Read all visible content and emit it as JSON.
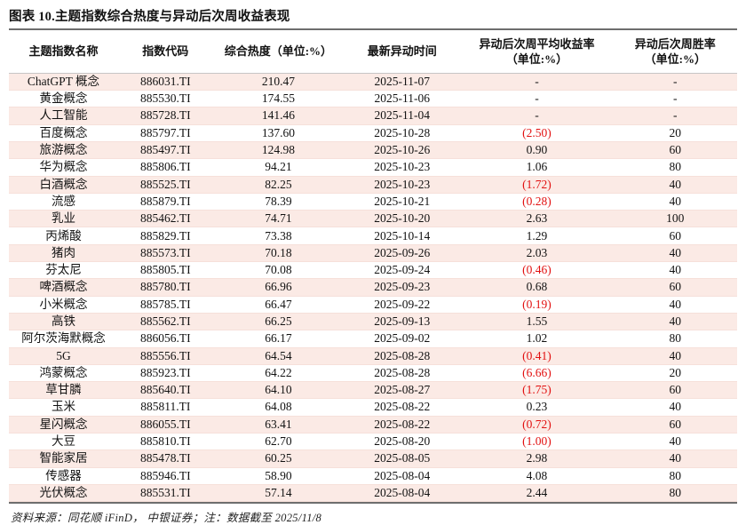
{
  "title": "图表 10.主题指数综合热度与异动后次周收益表现",
  "footer": "资料来源：同花顺 iFinD， 中银证券；注：数据截至 2025/11/8",
  "colors": {
    "stripe": "#fbeae5",
    "negative": "#e21010",
    "rule_dark": "#6e6e6e",
    "header_underline": "#c6c6c6"
  },
  "table": {
    "headers": [
      [
        "主题指数名称"
      ],
      [
        "指数代码"
      ],
      [
        "综合热度（单位:%）"
      ],
      [
        "最新异动时间"
      ],
      [
        "异动后次周平均收益率",
        "（单位:%）"
      ],
      [
        "异动后次周胜率",
        "（单位:%）"
      ]
    ],
    "rows": [
      [
        "ChatGPT 概念",
        "886031.TI",
        "210.47",
        "2025-11-07",
        "-",
        "-"
      ],
      [
        "黄金概念",
        "885530.TI",
        "174.55",
        "2025-11-06",
        "-",
        "-"
      ],
      [
        "人工智能",
        "885728.TI",
        "141.46",
        "2025-11-04",
        "-",
        "-"
      ],
      [
        "百度概念",
        "885797.TI",
        "137.60",
        "2025-10-28",
        "(2.50)",
        "20"
      ],
      [
        "旅游概念",
        "885497.TI",
        "124.98",
        "2025-10-26",
        "0.90",
        "60"
      ],
      [
        "华为概念",
        "885806.TI",
        "94.21",
        "2025-10-23",
        "1.06",
        "80"
      ],
      [
        "白酒概念",
        "885525.TI",
        "82.25",
        "2025-10-23",
        "(1.72)",
        "40"
      ],
      [
        "流感",
        "885879.TI",
        "78.39",
        "2025-10-21",
        "(0.28)",
        "40"
      ],
      [
        "乳业",
        "885462.TI",
        "74.71",
        "2025-10-20",
        "2.63",
        "100"
      ],
      [
        "丙烯酸",
        "885829.TI",
        "73.38",
        "2025-10-14",
        "1.29",
        "60"
      ],
      [
        "猪肉",
        "885573.TI",
        "70.18",
        "2025-09-26",
        "2.03",
        "40"
      ],
      [
        "芬太尼",
        "885805.TI",
        "70.08",
        "2025-09-24",
        "(0.46)",
        "40"
      ],
      [
        "啤酒概念",
        "885780.TI",
        "66.96",
        "2025-09-23",
        "0.68",
        "60"
      ],
      [
        "小米概念",
        "885785.TI",
        "66.47",
        "2025-09-22",
        "(0.19)",
        "40"
      ],
      [
        "高铁",
        "885562.TI",
        "66.25",
        "2025-09-13",
        "1.55",
        "40"
      ],
      [
        "阿尔茨海默概念",
        "886056.TI",
        "66.17",
        "2025-09-02",
        "1.02",
        "80"
      ],
      [
        "5G",
        "885556.TI",
        "64.54",
        "2025-08-28",
        "(0.41)",
        "40"
      ],
      [
        "鸿蒙概念",
        "885923.TI",
        "64.22",
        "2025-08-28",
        "(6.66)",
        "20"
      ],
      [
        "草甘膦",
        "885640.TI",
        "64.10",
        "2025-08-27",
        "(1.75)",
        "60"
      ],
      [
        "玉米",
        "885811.TI",
        "64.08",
        "2025-08-22",
        "0.23",
        "40"
      ],
      [
        "星闪概念",
        "886055.TI",
        "63.41",
        "2025-08-22",
        "(0.72)",
        "60"
      ],
      [
        "大豆",
        "885810.TI",
        "62.70",
        "2025-08-20",
        "(1.00)",
        "40"
      ],
      [
        "智能家居",
        "885478.TI",
        "60.25",
        "2025-08-05",
        "2.98",
        "40"
      ],
      [
        "传感器",
        "885946.TI",
        "58.90",
        "2025-08-04",
        "4.08",
        "80"
      ],
      [
        "光伏概念",
        "885531.TI",
        "57.14",
        "2025-08-04",
        "2.44",
        "80"
      ]
    ]
  }
}
